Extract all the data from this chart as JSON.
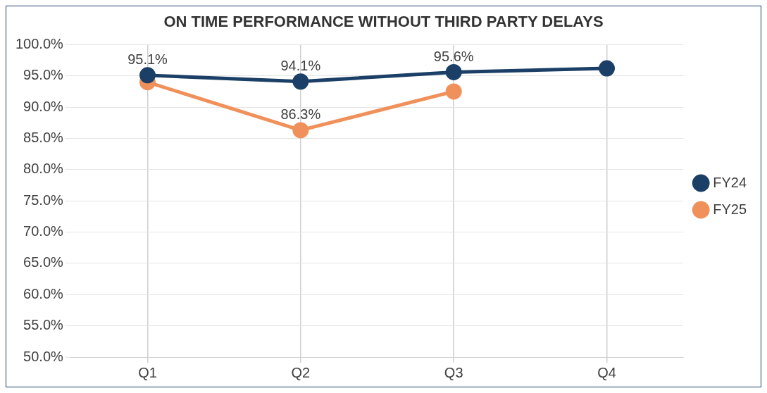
{
  "chart_data": {
    "type": "line",
    "title": "ON TIME PERFORMANCE WITHOUT THIRD PARTY DELAYS",
    "categories": [
      "Q1",
      "Q2",
      "Q3",
      "Q4"
    ],
    "series": [
      {
        "name": "FY24",
        "color": "#1b3f66",
        "values": [
          95.1,
          94.1,
          95.6,
          96.2
        ],
        "value_labels": [
          "95.1%",
          "94.1%",
          "95.6%",
          null
        ]
      },
      {
        "name": "FY25",
        "color": "#f0905a",
        "values": [
          94.0,
          86.3,
          92.5,
          null
        ],
        "value_labels": [
          null,
          "86.3%",
          null,
          null
        ]
      }
    ],
    "ylim": [
      50,
      100
    ],
    "yticks": [
      {
        "value": 50,
        "label": "50.0%"
      },
      {
        "value": 55,
        "label": "55.0%"
      },
      {
        "value": 60,
        "label": "60.0%"
      },
      {
        "value": 65,
        "label": "65.0%"
      },
      {
        "value": 70,
        "label": "70.0%"
      },
      {
        "value": 75,
        "label": "75.0%"
      },
      {
        "value": 80,
        "label": "80.0%"
      },
      {
        "value": 85,
        "label": "85.0%"
      },
      {
        "value": 90,
        "label": "90.0%"
      },
      {
        "value": 95,
        "label": "95.0%"
      },
      {
        "value": 100,
        "label": "100.0%"
      }
    ],
    "grid": true,
    "legend": "right",
    "marker": "circle",
    "line_style": "solid"
  }
}
